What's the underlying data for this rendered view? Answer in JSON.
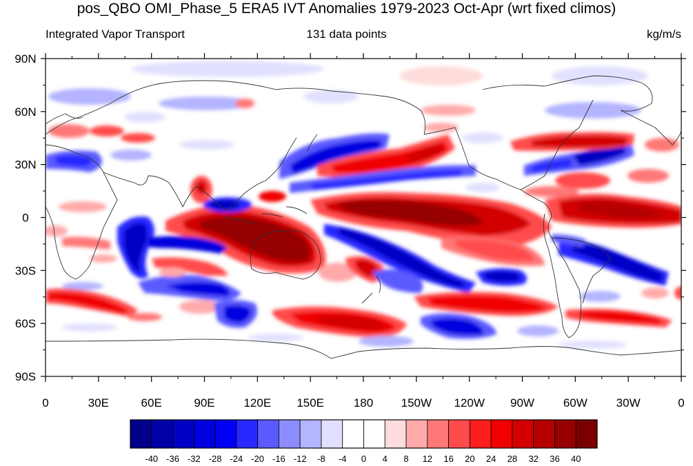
{
  "title": "pos_QBO OMI_Phase_5 ERA5 IVT Anomalies 1979-2023 Oct-Apr (wrt fixed climos)",
  "subtitle_left": "Integrated Vapor Transport",
  "subtitle_center": "131 data points",
  "subtitle_right": "kg/m/s",
  "lat_labels": [
    "90N",
    "60N",
    "30N",
    "0",
    "30S",
    "60S",
    "90S"
  ],
  "lon_labels": [
    "0",
    "30E",
    "60E",
    "90E",
    "120E",
    "150E",
    "180",
    "150W",
    "120W",
    "90W",
    "60W",
    "30W",
    "0"
  ],
  "colorbar": {
    "labels": [
      "-40",
      "-36",
      "-32",
      "-28",
      "-24",
      "-20",
      "-16",
      "-12",
      "-8",
      "-4",
      "0",
      "4",
      "8",
      "12",
      "16",
      "20",
      "24",
      "28",
      "32",
      "36",
      "40"
    ],
    "colors": [
      "#00008b",
      "#0000a8",
      "#0000c4",
      "#0000de",
      "#0000f5",
      "#2828ff",
      "#5a5aff",
      "#8c8cff",
      "#b4b4ff",
      "#e1e1ff",
      "#ffffff",
      "#ffffff",
      "#ffdcdc",
      "#ffaaaa",
      "#ff7878",
      "#ff4b4b",
      "#ff1e1e",
      "#f00000",
      "#d20000",
      "#b40000",
      "#960000",
      "#7a0000"
    ]
  }
}
